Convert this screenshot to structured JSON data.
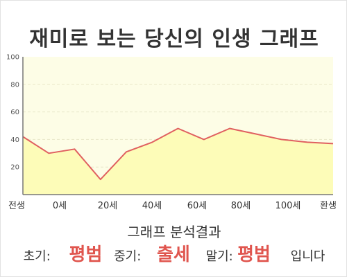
{
  "title": "재미로 보는 당신의 인생 그래프",
  "colors": {
    "plot_bg": "#fdfde6",
    "area_fill": "#fdfcb8",
    "line": "#e06060",
    "grid": "#e8e6c8",
    "axis": "#777777",
    "highlight": "#e0554e"
  },
  "chart_data": {
    "type": "area",
    "title": "재미로 보는 당신의 인생 그래프",
    "x_tick_labels": [
      "전생",
      "0세",
      "20세",
      "40세",
      "60세",
      "80세",
      "100세",
      "환생"
    ],
    "y_ticks": [
      20,
      40,
      60,
      80,
      100
    ],
    "ylim": [
      0,
      100
    ],
    "grid": true,
    "legend": "none",
    "series": [
      {
        "values": [
          42,
          30,
          33,
          11,
          31,
          38,
          48,
          40,
          48,
          44,
          40,
          38,
          37
        ]
      }
    ]
  },
  "analysis": {
    "heading": "그래프 분석결과",
    "early_label": "초기:",
    "early_value": "평범",
    "middle_label": "중기:",
    "middle_value": "출세",
    "late_label": "말기:",
    "late_value": "평범",
    "suffix": "입니다"
  }
}
